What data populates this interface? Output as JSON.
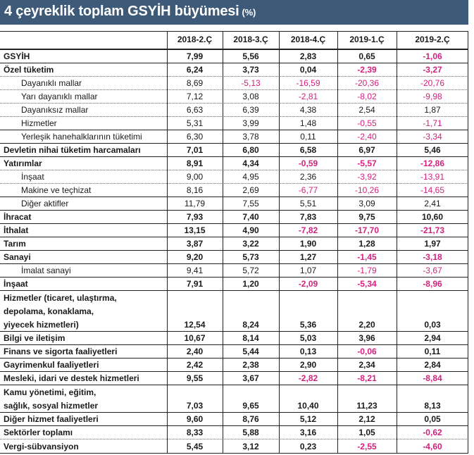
{
  "title": "4 çeyreklik toplam GSYİH büyümesi",
  "unit": "(%)",
  "columns": [
    "2018-2.Ç",
    "2018-3.Ç",
    "2018-4.Ç",
    "2019-1.Ç",
    "2019-2.Ç"
  ],
  "rows": [
    {
      "label": "GSYİH",
      "bold": true,
      "indent": false,
      "values": [
        "7,99",
        "5,56",
        "2,83",
        "0,65",
        "-1,06"
      ]
    },
    {
      "label": "Özel tüketim",
      "bold": true,
      "indent": false,
      "values": [
        "6,24",
        "3,73",
        "0,04",
        "-2,39",
        "-3,27"
      ]
    },
    {
      "label": "Dayanıklı mallar",
      "bold": false,
      "indent": true,
      "values": [
        "8,69",
        "-5,13",
        "-16,59",
        "-20,36",
        "-20,76"
      ]
    },
    {
      "label": "Yarı dayanıklı mallar",
      "bold": false,
      "indent": true,
      "values": [
        "7,12",
        "3,08",
        "-2,81",
        "-8,02",
        "-9,98"
      ]
    },
    {
      "label": "Dayanıksız mallar",
      "bold": false,
      "indent": true,
      "values": [
        "6,63",
        "6,39",
        "4,38",
        "2,54",
        "1,87"
      ]
    },
    {
      "label": "Hizmetler",
      "bold": false,
      "indent": true,
      "values": [
        "5,31",
        "3,99",
        "1,48",
        "-0,55",
        "-1,71"
      ]
    },
    {
      "label": "Yerleşik hanehalklarının tüketimi",
      "bold": false,
      "indent": true,
      "values": [
        "6,30",
        "3,78",
        "0,11",
        "-2,40",
        "-3,34"
      ]
    },
    {
      "label": "Devletin nihai tüketim harcamaları",
      "bold": true,
      "indent": false,
      "values": [
        "7,01",
        "6,80",
        "6,58",
        "6,97",
        "5,46"
      ]
    },
    {
      "label": "Yatırımlar",
      "bold": true,
      "indent": false,
      "values": [
        "8,91",
        "4,34",
        "-0,59",
        "-5,57",
        "-12,86"
      ]
    },
    {
      "label": "İnşaat",
      "bold": false,
      "indent": true,
      "values": [
        "9,00",
        "4,95",
        "2,36",
        "-3,92",
        "-13,91"
      ]
    },
    {
      "label": "Makine ve teçhizat",
      "bold": false,
      "indent": true,
      "values": [
        "8,16",
        "2,69",
        "-6,77",
        "-10,26",
        "-14,65"
      ]
    },
    {
      "label": "Diğer aktifler",
      "bold": false,
      "indent": true,
      "values": [
        "11,79",
        "7,55",
        "5,51",
        "3,09",
        "2,41"
      ]
    },
    {
      "label": "İhracat",
      "bold": true,
      "indent": false,
      "values": [
        "7,93",
        "7,40",
        "7,83",
        "9,75",
        "10,60"
      ]
    },
    {
      "label": "İthalat",
      "bold": true,
      "indent": false,
      "values": [
        "13,15",
        "4,90",
        "-7,82",
        "-17,70",
        "-21,73"
      ]
    },
    {
      "label": "Tarım",
      "bold": true,
      "indent": false,
      "values": [
        "3,87",
        "3,22",
        "1,90",
        "1,28",
        "1,97"
      ]
    },
    {
      "label": "Sanayi",
      "bold": true,
      "indent": false,
      "values": [
        "9,20",
        "5,73",
        "1,27",
        "-1,45",
        "-3,18"
      ]
    },
    {
      "label": "İmalat sanayi",
      "bold": false,
      "indent": true,
      "values": [
        "9,41",
        "5,72",
        "1,07",
        "-1,79",
        "-3,67"
      ]
    },
    {
      "label": "İnşaat",
      "bold": true,
      "indent": false,
      "values": [
        "7,91",
        "1,20",
        "-2,09",
        "-5,34",
        "-8,96"
      ]
    },
    {
      "label": "Hizmetler (ticaret, ulaştırma, depolama, konaklama, yiyecek hizmetleri)",
      "lines": [
        "Hizmetler (ticaret, ulaştırma,",
        "depolama, konaklama,",
        "yiyecek hizmetleri)"
      ],
      "bold": true,
      "indent": false,
      "values": [
        "12,54",
        "8,24",
        "5,36",
        "2,20",
        "0,03"
      ]
    },
    {
      "label": "Bilgi ve iletişim",
      "bold": true,
      "indent": false,
      "values": [
        "10,67",
        "8,14",
        "5,03",
        "3,96",
        "2,94"
      ]
    },
    {
      "label": "Finans ve sigorta faaliyetleri",
      "bold": true,
      "indent": false,
      "values": [
        "2,40",
        "5,44",
        "0,13",
        "-0,06",
        "0,11"
      ]
    },
    {
      "label": "Gayrimenkul faaliyetleri",
      "bold": true,
      "indent": false,
      "values": [
        "2,42",
        "2,38",
        "2,90",
        "2,34",
        "2,84"
      ]
    },
    {
      "label": "Mesleki, idari ve destek hizmetleri",
      "bold": true,
      "indent": false,
      "values": [
        "9,55",
        "3,67",
        "-2,82",
        "-8,21",
        "-8,84"
      ]
    },
    {
      "label": "Kamu yönetimi, eğitim, sağlık, sosyal hizmetler",
      "lines": [
        "Kamu yönetimi, eğitim,",
        "sağlık, sosyal hizmetler"
      ],
      "bold": true,
      "indent": false,
      "values": [
        "7,03",
        "9,65",
        "10,40",
        "11,23",
        "8,13"
      ]
    },
    {
      "label": "Diğer hizmet faaliyetleri",
      "bold": true,
      "indent": false,
      "values": [
        "9,60",
        "8,76",
        "5,12",
        "2,12",
        "0,05"
      ]
    },
    {
      "label": "Sektörler toplamı",
      "bold": true,
      "indent": false,
      "values": [
        "8,33",
        "5,88",
        "3,16",
        "1,05",
        "-0,62"
      ]
    },
    {
      "label": "Vergi-sübvansiyon",
      "bold": true,
      "indent": false,
      "values": [
        "5,45",
        "3,12",
        "0,23",
        "-2,55",
        "-4,60"
      ]
    }
  ],
  "colors": {
    "header_bg": "#3d5a78",
    "header_text": "#ffffff",
    "negative": "#d4217f",
    "text": "#1a1a1a",
    "rule": "#222222"
  }
}
